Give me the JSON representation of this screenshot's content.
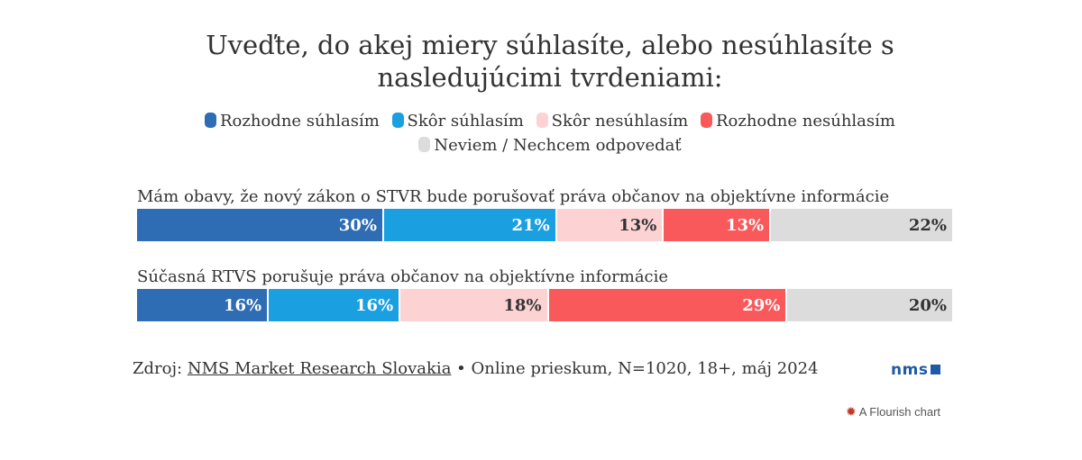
{
  "title": "Uveďte, do akej miery súhlasíte, alebo nesúhlasíte s nasledujúcimi tvrdeniami:",
  "legend": [
    {
      "label": "Rozhodne súhlasím",
      "color": "#2e6db3"
    },
    {
      "label": "Skôr súhlasím",
      "color": "#1aa0e0"
    },
    {
      "label": "Skôr nesúhlasím",
      "color": "#fcd2d2"
    },
    {
      "label": "Rozhodne nesúhlasím",
      "color": "#f9595b"
    },
    {
      "label": "Neviem / Nechcem odpovedať",
      "color": "#dcdcdc"
    }
  ],
  "chart_data": {
    "type": "bar",
    "orientation": "horizontal",
    "stacked": true,
    "normalized": true,
    "categories": [
      "Mám obavy, že nový zákon o STVR bude porušovať práva občanov na objektívne informácie",
      "Súčasná RTVS porušuje práva občanov na objektívne informácie"
    ],
    "series": [
      {
        "name": "Rozhodne súhlasím",
        "values": [
          30,
          16
        ],
        "labels": [
          "30%",
          "16%"
        ],
        "color": "#2e6db3"
      },
      {
        "name": "Skôr súhlasím",
        "values": [
          21,
          16
        ],
        "labels": [
          "21%",
          "16%"
        ],
        "color": "#1aa0e0"
      },
      {
        "name": "Skôr nesúhlasím",
        "values": [
          13,
          18
        ],
        "labels": [
          "13%",
          "18%"
        ],
        "color": "#fcd2d2"
      },
      {
        "name": "Rozhodne nesúhlasím",
        "values": [
          13,
          29
        ],
        "labels": [
          "13%",
          "29%"
        ],
        "color": "#f9595b"
      },
      {
        "name": "Neviem / Nechcem odpovedať",
        "values": [
          22,
          20
        ],
        "labels": [
          "22%",
          "20%"
        ],
        "color": "#dcdcdc"
      }
    ],
    "label_colors": [
      "#ffffff",
      "#ffffff",
      "#333333",
      "#ffffff",
      "#333333"
    ],
    "legend_position": "top-center",
    "grid": false
  },
  "source": {
    "prefix": "Zdroj:",
    "link": "NMS Market Research Slovakia",
    "suffix": "• Online prieskum, N=1020, 18+, máj 2024"
  },
  "logo": {
    "text": "nms"
  },
  "footer": {
    "flourish": "A Flourish chart"
  }
}
